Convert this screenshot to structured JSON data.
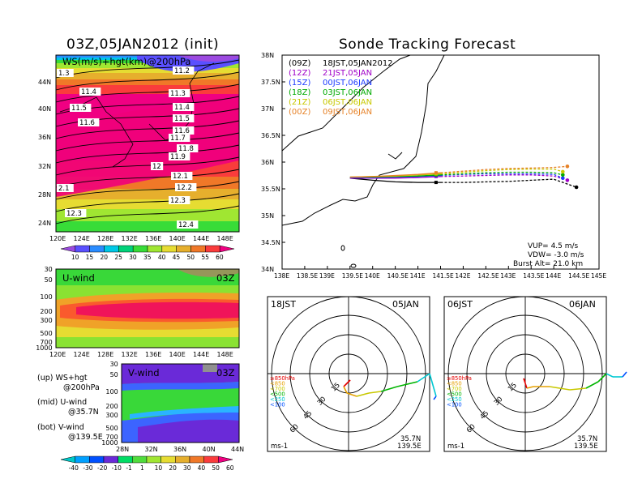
{
  "colors": {
    "ws": [
      "#9c4ae0",
      "#5a50ff",
      "#2a8cff",
      "#00c8e6",
      "#00d27a",
      "#38dc38",
      "#a0e632",
      "#e6dc32",
      "#e6af2d",
      "#f07828",
      "#fa3c3c",
      "#f00082"
    ],
    "uwind": [
      "#96965a",
      "#39d839",
      "#8ae232",
      "#e6dc32",
      "#f0a228",
      "#fa5a2d",
      "#f0145a"
    ],
    "vwind": [
      "#6a2ad8",
      "#3c64ff",
      "#2ab4ff",
      "#00d2d2",
      "#39d839"
    ],
    "vwind_bar": [
      "#00c8c8",
      "#00a0ff",
      "#0050ff",
      "#6a2ad8",
      "#00dc64",
      "#50dc3c",
      "#a0e632",
      "#e6dc32",
      "#e6af2d",
      "#f07828",
      "#fa3c3c",
      "#f00082"
    ],
    "tracks": [
      "#000000",
      "#a000c8",
      "#1e3cff",
      "#00aa00",
      "#c8c800",
      "#e68228"
    ],
    "hodo": [
      "#e60000",
      "#e6a000",
      "#c8c800",
      "#00b400",
      "#00c8d2",
      "#0050ff"
    ]
  },
  "left_panel": {
    "title": "03Z,05JAN2012 (init)",
    "map_label": "WS(m/s)+hgt(km)@200hPa",
    "lat_labels": [
      "44N",
      "40N",
      "36N",
      "32N",
      "28N",
      "24N"
    ],
    "lon_labels": [
      "120E",
      "124E",
      "128E",
      "132E",
      "136E",
      "140E",
      "144E",
      "148E"
    ],
    "height_labels": [
      "1.3",
      "11.2",
      "11.4",
      "11.3",
      "11.5",
      "11.4",
      "11.6",
      "11.5",
      "11.6",
      "11.7",
      "11.8",
      "11.9",
      "12",
      "12.1",
      "2.1",
      "12.2",
      "12.3",
      "12.3",
      "12.4"
    ],
    "ws_colorbar": [
      "10",
      "15",
      "20",
      "25",
      "30",
      "35",
      "40",
      "45",
      "50",
      "55",
      "60"
    ]
  },
  "uwind_panel": {
    "label": "U-wind",
    "time": "03Z",
    "p_labels": [
      "30",
      "50",
      "100",
      "200",
      "300",
      "500",
      "700",
      "1000"
    ],
    "lon_labels": [
      "120E",
      "124E",
      "128E",
      "132E",
      "136E",
      "140E",
      "144E",
      "148E"
    ]
  },
  "vwind_panel": {
    "label": "V-wind",
    "time": "03Z",
    "p_labels": [
      "30",
      "50",
      "100",
      "200",
      "300",
      "500",
      "700",
      "1000"
    ],
    "lat_labels": [
      "28N",
      "32N",
      "36N",
      "40N",
      "44N"
    ],
    "colorbar": [
      "-40",
      "-30",
      "-20",
      "-10",
      "-1",
      "1",
      "10",
      "20",
      "30",
      "40",
      "50",
      "60"
    ]
  },
  "legend_notes": {
    "up_1": "(up) WS+hgt",
    "up_2": "@200hPa",
    "mid_1": "(mid) U-wind",
    "mid_2": "@35.7N",
    "bot_1": "(bot) V-wind",
    "bot_2": "@139.5E"
  },
  "main": {
    "title": "Sonde Tracking Forecast",
    "lat_ticks": [
      "38N",
      "37.5N",
      "37N",
      "36.5N",
      "36N",
      "35.5N",
      "35N",
      "34.5N",
      "34N"
    ],
    "lon_ticks": [
      "138E",
      "138.5E",
      "139E",
      "139.5E",
      "140E",
      "140.5E",
      "141E",
      "141.5E",
      "142E",
      "142.5E",
      "143E",
      "143.5E",
      "144E",
      "144.5E",
      "145E"
    ],
    "legend": [
      {
        "code": "(09Z)",
        "time": "18JST,05JAN2012"
      },
      {
        "code": "(12Z)",
        "time": "21JST,05JAN"
      },
      {
        "code": "(15Z)",
        "time": "00JST,06JAN"
      },
      {
        "code": "(18Z)",
        "time": "03JST,06JAN"
      },
      {
        "code": "(21Z)",
        "time": "06JST,06JAN"
      },
      {
        "code": "(00Z)",
        "time": "09JST,06JAN"
      }
    ],
    "params": {
      "vup": "VUP= 4.5 m/s",
      "vdw": "VDW= -3.0 m/s",
      "burst": "Burst Alt= 21.0 km"
    }
  },
  "hodographs": [
    {
      "time": "18JST",
      "date": "05JAN",
      "ring_labels": [
        "15",
        "30",
        "45",
        "60"
      ],
      "levels": [
        "≥850hPa",
        "<850",
        "<700",
        "<500",
        "<250",
        "<100"
      ],
      "unit": "ms-1",
      "lat": "35.7N",
      "lon": "139.5E"
    },
    {
      "time": "06JST",
      "date": "06JAN",
      "ring_labels": [
        "15",
        "30",
        "45",
        "60"
      ],
      "levels": [
        "≥850hPa",
        "<850",
        "<700",
        "<500",
        "<250",
        "<100"
      ],
      "unit": "ms-1",
      "lat": "35.7N",
      "lon": "139.5E"
    }
  ],
  "chart_data": [
    {
      "type": "heatmap",
      "title": "03Z,05JAN2012 (init)",
      "subtitle": "WS(m/s)+hgt(km)@200hPa",
      "xlim": [
        120,
        150
      ],
      "ylim": [
        22,
        47
      ],
      "colorbar_levels": [
        10,
        15,
        20,
        25,
        30,
        35,
        40,
        45,
        50,
        55,
        60
      ],
      "jet_core_lat_range": [
        27,
        35
      ],
      "jet_max_ws": 60
    },
    {
      "type": "heatmap",
      "title": "U-wind",
      "xlim": [
        120,
        150
      ],
      "pressure_levels": [
        30,
        50,
        100,
        200,
        300,
        500,
        700,
        1000
      ],
      "lat": 35.7,
      "core_pressure_hPa": 200
    },
    {
      "type": "heatmap",
      "title": "V-wind",
      "xlim": [
        28,
        44
      ],
      "pressure_levels": [
        30,
        50,
        100,
        200,
        300,
        500,
        700,
        1000
      ],
      "lon": 139.5,
      "colorbar_levels": [
        -40,
        -30,
        -20,
        -10,
        -1,
        1,
        10,
        20,
        30,
        40,
        50,
        60
      ]
    },
    {
      "type": "line",
      "title": "Sonde Tracking Forecast",
      "xlabel": "",
      "ylabel": "",
      "xlim": [
        138,
        145
      ],
      "ylim": [
        34,
        38
      ],
      "series": [
        {
          "name": "(09Z) 18JST,05JAN2012",
          "x": [
            139.5,
            140.0,
            140.5,
            141.0,
            141.5,
            142.0,
            142.5,
            143.0,
            143.5,
            144.0,
            144.5
          ],
          "y": [
            35.7,
            35.66,
            35.63,
            35.62,
            35.62,
            35.62,
            35.63,
            35.64,
            35.66,
            35.68,
            35.53
          ]
        },
        {
          "name": "(12Z) 21JST,05JAN",
          "x": [
            139.5,
            140.0,
            140.5,
            141.0,
            141.5,
            142.0,
            142.5,
            143.0,
            143.5,
            144.0,
            144.3
          ],
          "y": [
            35.7,
            35.7,
            35.7,
            35.71,
            35.73,
            35.74,
            35.75,
            35.76,
            35.76,
            35.74,
            35.66
          ]
        },
        {
          "name": "(15Z) 00JST,06JAN",
          "x": [
            139.5,
            140.0,
            140.5,
            141.0,
            141.5,
            142.0,
            142.5,
            143.0,
            143.5,
            144.0,
            144.2
          ],
          "y": [
            35.71,
            35.71,
            35.72,
            35.73,
            35.75,
            35.77,
            35.78,
            35.78,
            35.78,
            35.77,
            35.7
          ]
        },
        {
          "name": "(18Z) 03JST,06JAN",
          "x": [
            139.5,
            140.0,
            140.5,
            141.0,
            141.5,
            142.0,
            142.5,
            143.0,
            143.5,
            144.0,
            144.2
          ],
          "y": [
            35.72,
            35.72,
            35.73,
            35.74,
            35.76,
            35.78,
            35.8,
            35.81,
            35.81,
            35.8,
            35.76
          ]
        },
        {
          "name": "(21Z) 06JST,06JAN",
          "x": [
            139.5,
            140.0,
            140.5,
            141.0,
            141.5,
            142.0,
            142.5,
            143.0,
            143.5,
            144.0,
            144.2
          ],
          "y": [
            35.72,
            35.73,
            35.74,
            35.76,
            35.78,
            35.81,
            35.84,
            35.86,
            35.87,
            35.87,
            35.82
          ]
        },
        {
          "name": "(00Z) 09JST,06JAN",
          "x": [
            139.5,
            140.0,
            140.5,
            141.0,
            141.5,
            142.0,
            142.5,
            143.0,
            143.5,
            144.0,
            144.3
          ],
          "y": [
            35.72,
            35.73,
            35.75,
            35.77,
            35.8,
            35.83,
            35.86,
            35.88,
            35.89,
            35.9,
            35.92
          ]
        }
      ]
    }
  ]
}
